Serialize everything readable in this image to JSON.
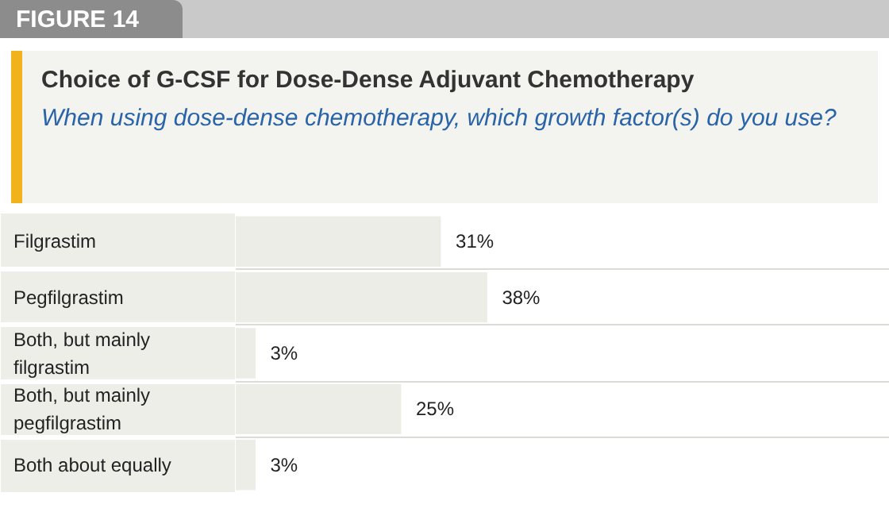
{
  "chart_data": {
    "type": "bar",
    "orientation": "horizontal",
    "annotations": [
      "FIGURE 14"
    ],
    "title": "Choice of G-CSF for Dose-Dense Adjuvant Chemotherapy",
    "subtitle": "When using dose-dense chemotherapy, which growth factor(s) do you use?",
    "categories": [
      "Filgrastim",
      "Pegfilgrastim",
      "Both, but mainly filgrastim",
      "Both, but mainly pegfilgrastim",
      "Both about equally"
    ],
    "values": [
      31,
      38,
      3,
      25,
      3
    ],
    "value_labels": [
      "31%",
      "38%",
      "3%",
      "25%",
      "3%"
    ],
    "color": "#ededE8"
  }
}
